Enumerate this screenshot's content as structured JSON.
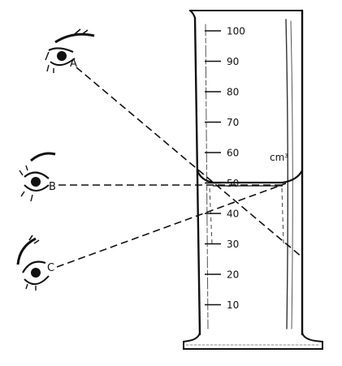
{
  "scale": {
    "ticks": [
      "100",
      "90",
      "80",
      "70",
      "60",
      "50",
      "40",
      "30",
      "20",
      "10"
    ],
    "unit": "cm³",
    "meniscus_level": 50
  },
  "eyes": [
    {
      "label": "A"
    },
    {
      "label": "B"
    },
    {
      "label": "C"
    }
  ]
}
